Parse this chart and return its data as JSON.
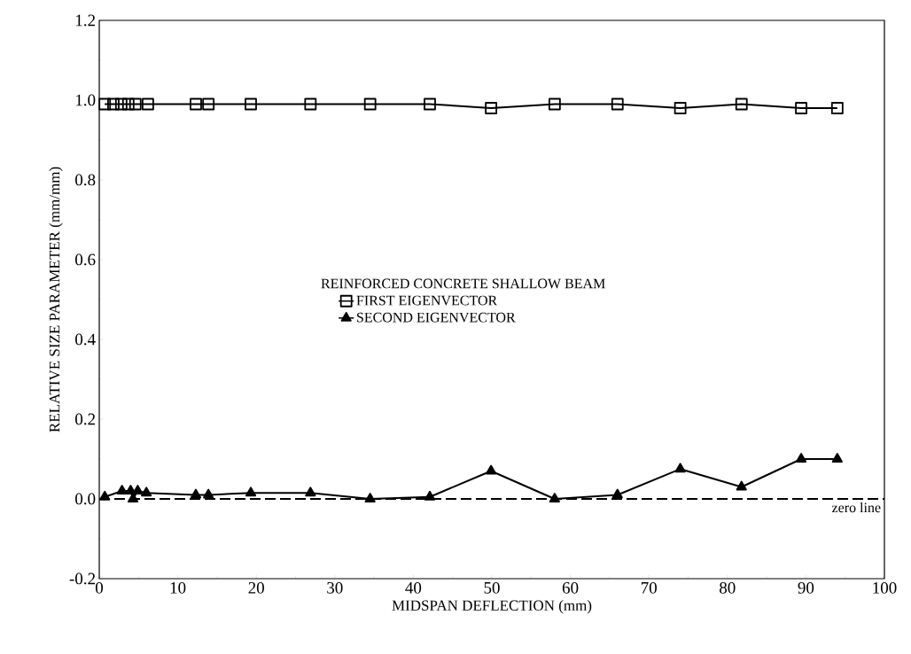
{
  "chart_data": {
    "type": "line",
    "xlabel": "MIDSPAN DEFLECTION (mm)",
    "ylabel": "RELATIVE SIZE PARAMETER (mm/mm)",
    "legend_title": "REINFORCED CONCRETE SHALLOW BEAM",
    "xlim": [
      0,
      100
    ],
    "ylim": [
      -0.2,
      1.2
    ],
    "xticks": [
      0,
      10,
      20,
      30,
      40,
      50,
      60,
      70,
      80,
      90,
      100
    ],
    "yticks": [
      -0.2,
      {
        "value": 0,
        "label": "0.0"
      },
      0.2,
      0.4,
      0.6,
      0.8,
      {
        "value": 1,
        "label": "1.0"
      },
      1.2
    ],
    "legend": "center",
    "grid": false,
    "series": [
      {
        "name": "FIRST EIGENVECTOR",
        "color": "#000000",
        "marker": "square",
        "x": [
          0.7,
          1.8,
          2.8,
          3.7,
          4.6,
          6.2,
          12.3,
          13.9,
          19.3,
          26.9,
          34.5,
          42.1,
          49.9,
          58,
          66,
          74,
          81.8,
          89.4,
          94
        ],
        "values": [
          0.99,
          0.99,
          0.99,
          0.99,
          0.99,
          0.99,
          0.99,
          0.99,
          0.99,
          0.99,
          0.99,
          0.99,
          0.98,
          0.99,
          0.99,
          0.98,
          0.99,
          0.98,
          0.98
        ]
      },
      {
        "name": "SECOND EIGENVECTOR",
        "color": "#000000",
        "marker": "triangle",
        "x": [
          0.7,
          2.9,
          4.0,
          4.3,
          4.9,
          6.0,
          12.3,
          13.9,
          19.3,
          26.9,
          34.5,
          42.1,
          49.9,
          58,
          66,
          74,
          81.8,
          89.4,
          94
        ],
        "values": [
          0.005,
          0.02,
          0.02,
          0.0,
          0.02,
          0.015,
          0.01,
          0.01,
          0.015,
          0.015,
          0.0,
          0.005,
          0.07,
          0.0,
          0.01,
          0.075,
          0.03,
          0.1,
          0.1
        ]
      }
    ],
    "ref_lines": [
      {
        "axis": "y",
        "value": 0,
        "label": "zero line",
        "line_style": "dashed"
      }
    ]
  }
}
